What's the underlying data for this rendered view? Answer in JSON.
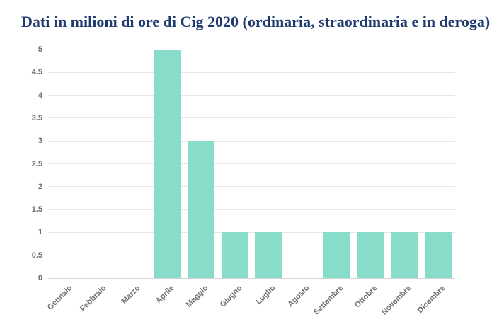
{
  "chart_data": {
    "type": "bar",
    "title": "Dati in milioni di ore di Cig 2020 (ordinaria, straordinaria e in deroga)",
    "categories": [
      "Gennaio",
      "Febbraio",
      "Marzo",
      "Aprile",
      "Maggio",
      "Giugno",
      "Luglio",
      "Agosto",
      "Settembre",
      "Ottobre",
      "Novembre",
      "Dicembre"
    ],
    "values": [
      0,
      0,
      0,
      5,
      3,
      1,
      1,
      0,
      1,
      1,
      1,
      1
    ],
    "xlabel": "",
    "ylabel": "",
    "ylim": [
      0,
      5
    ],
    "ytick_step": 0.5,
    "ytick_labels": [
      "0",
      "0.5",
      "1",
      "1.5",
      "2",
      "2.5",
      "3",
      "3.5",
      "4",
      "4.5",
      "5"
    ],
    "grid": true,
    "legend": false,
    "x_label_rotation": -45,
    "colors": {
      "bar": "#87dcca",
      "title": "#1e3a6e",
      "axis_label": "#6b7075",
      "gridline": "#e6e6e6",
      "axis_line": "#d4d4d4",
      "background": "#ffffff"
    }
  }
}
